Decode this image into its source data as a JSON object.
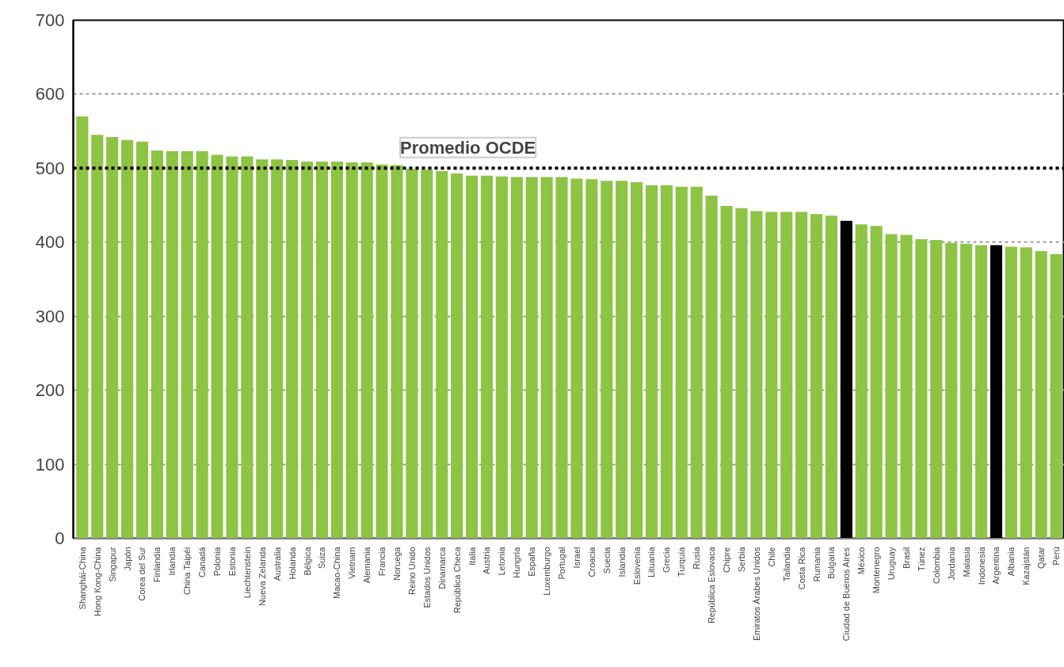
{
  "chart_data": {
    "type": "bar",
    "categories": [
      "Shanghái-China",
      "Hong Kong-China",
      "Singapur",
      "Japón",
      "Corea del Sur",
      "Finlandia",
      "Irlandia",
      "China Taipéi",
      "Canadá",
      "Polonia",
      "Estonia",
      "Liechtenstein",
      "Nueva Zelanda",
      "Australia",
      "Holanda",
      "Bélgica",
      "Suiza",
      "Macao-China",
      "Vietnam",
      "Alemania",
      "Francia",
      "Noruega",
      "Reino Unido",
      "Estados Unidos",
      "Dinamarca",
      "República Checa",
      "Italia",
      "Austria",
      "Letonia",
      "Hungría",
      "España",
      "Luxemburgo",
      "Portugal",
      "Israel",
      "Croacia",
      "Suecia",
      "Islandia",
      "Eslovenia",
      "Lituania",
      "Grecia",
      "Turquía",
      "Rusia",
      "República Eslovaca",
      "Chipre",
      "Serbia",
      "Emiratos Árabes Unidos",
      "Chile",
      "Tailandia",
      "Costa Rica",
      "Rumania",
      "Bulgaria",
      "Ciudad de Buenos Aires",
      "México",
      "Montenegro",
      "Uruguay",
      "Brasil",
      "Túnez",
      "Colombia",
      "Jordania",
      "Malasia",
      "Indonesia",
      "Argentina",
      "Albania",
      "Kazajstán",
      "Qatar",
      "Perú"
    ],
    "values": [
      570,
      545,
      542,
      538,
      536,
      524,
      523,
      523,
      523,
      518,
      516,
      516,
      512,
      512,
      511,
      509,
      509,
      509,
      508,
      508,
      505,
      504,
      499,
      498,
      496,
      493,
      490,
      490,
      489,
      488,
      488,
      488,
      488,
      486,
      485,
      483,
      483,
      481,
      477,
      477,
      475,
      475,
      463,
      449,
      446,
      442,
      441,
      441,
      441,
      438,
      436,
      429,
      424,
      422,
      411,
      410,
      404,
      403,
      399,
      398,
      396,
      396,
      394,
      393,
      388,
      384
    ],
    "colors": [
      "#8dc444",
      "#8dc444",
      "#8dc444",
      "#8dc444",
      "#8dc444",
      "#8dc444",
      "#8dc444",
      "#8dc444",
      "#8dc444",
      "#8dc444",
      "#8dc444",
      "#8dc444",
      "#8dc444",
      "#8dc444",
      "#8dc444",
      "#8dc444",
      "#8dc444",
      "#8dc444",
      "#8dc444",
      "#8dc444",
      "#8dc444",
      "#8dc444",
      "#8dc444",
      "#8dc444",
      "#8dc444",
      "#8dc444",
      "#8dc444",
      "#8dc444",
      "#8dc444",
      "#8dc444",
      "#8dc444",
      "#8dc444",
      "#8dc444",
      "#8dc444",
      "#8dc444",
      "#8dc444",
      "#8dc444",
      "#8dc444",
      "#8dc444",
      "#8dc444",
      "#8dc444",
      "#8dc444",
      "#8dc444",
      "#8dc444",
      "#8dc444",
      "#8dc444",
      "#8dc444",
      "#8dc444",
      "#8dc444",
      "#8dc444",
      "#8dc444",
      "#000000",
      "#8dc444",
      "#8dc444",
      "#8dc444",
      "#8dc444",
      "#8dc444",
      "#8dc444",
      "#8dc444",
      "#8dc444",
      "#8dc444",
      "#000000",
      "#8dc444",
      "#8dc444",
      "#8dc444",
      "#8dc444"
    ],
    "ylim": [
      0,
      700
    ],
    "yticks": [
      0,
      100,
      200,
      300,
      400,
      500,
      600,
      700
    ],
    "grid": "y",
    "ref_lines": [
      {
        "axis": "y",
        "value": 500,
        "label": "Promedio OCDE",
        "color": "#000000",
        "line_style": "dotted"
      }
    ]
  }
}
